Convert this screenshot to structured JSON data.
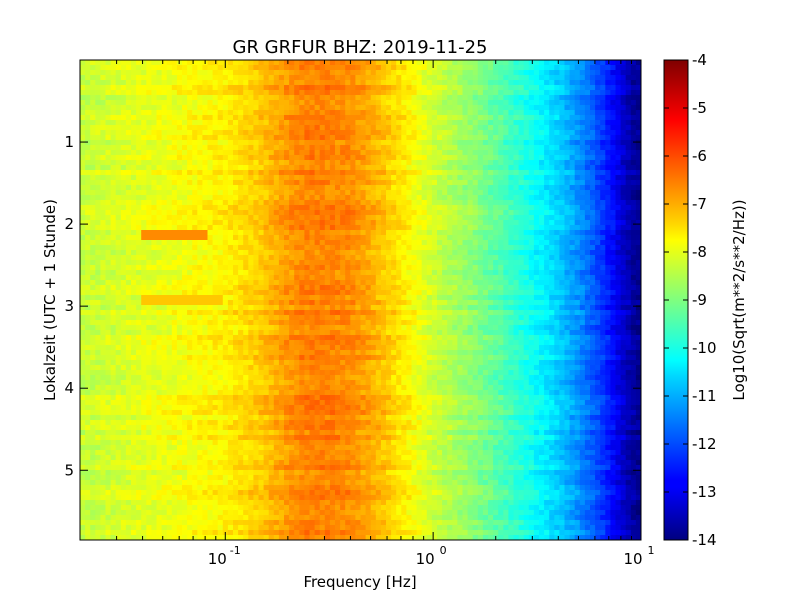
{
  "chart_data": {
    "type": "heatmap",
    "title": "GR GRFUR BHZ: 2019-11-25",
    "xlabel": "Frequency [Hz]",
    "ylabel": "Lokalzeit (UTC + 1 Stunde)",
    "colorbar_label": "Log10(Sqrt(m**2/s**2/Hz))",
    "x_scale": "log",
    "xlim": [
      0.02,
      10
    ],
    "ylim": [
      5.85,
      0
    ],
    "x_ticks": [
      {
        "value": 0.1,
        "base": "10",
        "exp": "-1"
      },
      {
        "value": 1,
        "base": "10",
        "exp": "0"
      },
      {
        "value": 10,
        "base": "10",
        "exp": "1"
      }
    ],
    "y_ticks": [
      "1",
      "2",
      "3",
      "4",
      "5"
    ],
    "color_range": [
      -14,
      -4
    ],
    "colorbar_ticks": [
      "-4",
      "-5",
      "-6",
      "-7",
      "-8",
      "-9",
      "-10",
      "-11",
      "-12",
      "-13",
      "-14"
    ],
    "colormap": "jet",
    "spectrum_profile": {
      "frequency_hz": [
        0.02,
        0.05,
        0.1,
        0.15,
        0.2,
        0.25,
        0.3,
        0.4,
        0.5,
        0.7,
        1.0,
        1.5,
        2.0,
        3.0,
        4.0,
        5.0,
        6.0,
        7.0,
        8.0,
        9.0,
        10.0
      ],
      "value": [
        -8.3,
        -7.9,
        -7.6,
        -7.2,
        -6.7,
        -6.5,
        -6.5,
        -6.6,
        -6.9,
        -7.5,
        -8.2,
        -8.8,
        -9.3,
        -10.1,
        -10.7,
        -11.3,
        -11.9,
        -12.5,
        -13.1,
        -13.6,
        -13.9
      ]
    },
    "features": [
      {
        "hour": 2.15,
        "f_min": 0.04,
        "f_max": 0.08,
        "value": -6.6
      },
      {
        "hour": 2.93,
        "f_min": 0.04,
        "f_max": 0.1,
        "value": -7.2
      }
    ]
  }
}
